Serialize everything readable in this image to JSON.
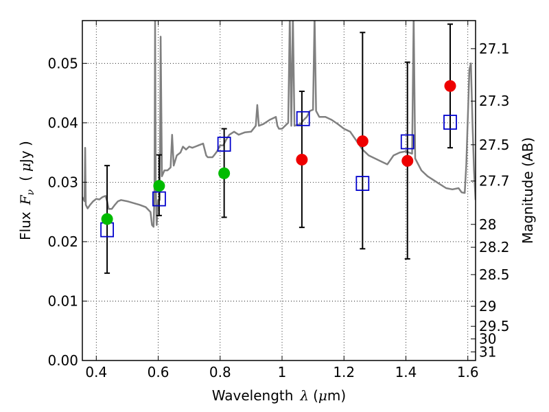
{
  "chart_data": {
    "type": "scatter",
    "xlabel": {
      "text": "Wavelength",
      "symbol": "λ",
      "unit_open": "(",
      "unit_mu": "μ",
      "unit_rest": "m)"
    },
    "ylabel": {
      "text": "Flux",
      "symbol": "F",
      "subscript": "ν",
      "unit_open": "(",
      "unit_mu": "μ",
      "unit_rest": "Jy )"
    },
    "y2label": "Magnitude (AB)",
    "xlim": [
      0.355,
      1.625
    ],
    "ylim": [
      0.0,
      0.0572
    ],
    "grid": true,
    "x_ticks": [
      {
        "value": 0.4,
        "label": "0.4"
      },
      {
        "value": 0.6,
        "label": "0.6"
      },
      {
        "value": 0.8,
        "label": "0.8"
      },
      {
        "value": 1.0,
        "label": "1"
      },
      {
        "value": 1.2,
        "label": "1.2"
      },
      {
        "value": 1.4,
        "label": "1.4"
      },
      {
        "value": 1.6,
        "label": "1.6"
      }
    ],
    "y_ticks": [
      {
        "value": 0.0,
        "label": "0.00"
      },
      {
        "value": 0.01,
        "label": "0.01"
      },
      {
        "value": 0.02,
        "label": "0.02"
      },
      {
        "value": 0.03,
        "label": "0.03"
      },
      {
        "value": 0.04,
        "label": "0.04"
      },
      {
        "value": 0.05,
        "label": "0.05"
      }
    ],
    "y2_ticks": [
      {
        "magnitude": 27.1,
        "label": "27.1"
      },
      {
        "magnitude": 27.3,
        "label": "27.3"
      },
      {
        "magnitude": 27.5,
        "label": "27.5"
      },
      {
        "magnitude": 27.7,
        "label": "27.7"
      },
      {
        "magnitude": 28.0,
        "label": "28"
      },
      {
        "magnitude": 28.2,
        "label": "28.2"
      },
      {
        "magnitude": 28.5,
        "label": "28.5"
      },
      {
        "magnitude": 29.0,
        "label": "29"
      },
      {
        "magnitude": 29.5,
        "label": "29.5"
      },
      {
        "magnitude": 30.0,
        "label": "30"
      },
      {
        "magnitude": 31.0,
        "label": "31"
      }
    ],
    "model_spectrum": {
      "color": "#808080",
      "points": [
        [
          0.355,
          0.0275
        ],
        [
          0.362,
          0.0268
        ],
        [
          0.364,
          0.0358
        ],
        [
          0.366,
          0.0262
        ],
        [
          0.372,
          0.0256
        ],
        [
          0.38,
          0.0262
        ],
        [
          0.39,
          0.0268
        ],
        [
          0.4,
          0.0272
        ],
        [
          0.41,
          0.0271
        ],
        [
          0.42,
          0.0275
        ],
        [
          0.43,
          0.0277
        ],
        [
          0.435,
          0.0268
        ],
        [
          0.44,
          0.0255
        ],
        [
          0.45,
          0.0255
        ],
        [
          0.46,
          0.0262
        ],
        [
          0.47,
          0.0268
        ],
        [
          0.48,
          0.027
        ],
        [
          0.5,
          0.0268
        ],
        [
          0.52,
          0.0265
        ],
        [
          0.54,
          0.0262
        ],
        [
          0.56,
          0.0258
        ],
        [
          0.575,
          0.025
        ],
        [
          0.58,
          0.0228
        ],
        [
          0.585,
          0.0225
        ],
        [
          0.588,
          0.028
        ],
        [
          0.59,
          0.0575
        ],
        [
          0.592,
          0.03
        ],
        [
          0.595,
          0.0228
        ],
        [
          0.6,
          0.027
        ],
        [
          0.605,
          0.027
        ],
        [
          0.608,
          0.0545
        ],
        [
          0.612,
          0.031
        ],
        [
          0.62,
          0.032
        ],
        [
          0.63,
          0.032
        ],
        [
          0.64,
          0.0325
        ],
        [
          0.645,
          0.038
        ],
        [
          0.65,
          0.0328
        ],
        [
          0.66,
          0.0345
        ],
        [
          0.672,
          0.035
        ],
        [
          0.68,
          0.036
        ],
        [
          0.69,
          0.0355
        ],
        [
          0.7,
          0.036
        ],
        [
          0.71,
          0.0358
        ],
        [
          0.72,
          0.036
        ],
        [
          0.73,
          0.0362
        ],
        [
          0.745,
          0.0365
        ],
        [
          0.755,
          0.0345
        ],
        [
          0.76,
          0.0342
        ],
        [
          0.775,
          0.0342
        ],
        [
          0.78,
          0.0345
        ],
        [
          0.79,
          0.0352
        ],
        [
          0.8,
          0.0362
        ],
        [
          0.81,
          0.0362
        ],
        [
          0.82,
          0.0372
        ],
        [
          0.83,
          0.038
        ],
        [
          0.845,
          0.0385
        ],
        [
          0.86,
          0.038
        ],
        [
          0.88,
          0.0384
        ],
        [
          0.9,
          0.0385
        ],
        [
          0.915,
          0.0395
        ],
        [
          0.92,
          0.043
        ],
        [
          0.925,
          0.0395
        ],
        [
          0.94,
          0.0398
        ],
        [
          0.96,
          0.0405
        ],
        [
          0.98,
          0.041
        ],
        [
          0.985,
          0.0395
        ],
        [
          0.99,
          0.039
        ],
        [
          1.0,
          0.039
        ],
        [
          1.02,
          0.04
        ],
        [
          1.025,
          0.058
        ],
        [
          1.03,
          0.0395
        ],
        [
          1.035,
          0.058
        ],
        [
          1.04,
          0.0395
        ],
        [
          1.06,
          0.0398
        ],
        [
          1.07,
          0.0405
        ],
        [
          1.08,
          0.041
        ],
        [
          1.09,
          0.042
        ],
        [
          1.1,
          0.0422
        ],
        [
          1.105,
          0.058
        ],
        [
          1.11,
          0.042
        ],
        [
          1.12,
          0.041
        ],
        [
          1.14,
          0.041
        ],
        [
          1.16,
          0.0405
        ],
        [
          1.18,
          0.0398
        ],
        [
          1.2,
          0.039
        ],
        [
          1.22,
          0.0385
        ],
        [
          1.24,
          0.037
        ],
        [
          1.26,
          0.0355
        ],
        [
          1.28,
          0.0345
        ],
        [
          1.3,
          0.034
        ],
        [
          1.32,
          0.0335
        ],
        [
          1.34,
          0.033
        ],
        [
          1.36,
          0.0345
        ],
        [
          1.38,
          0.035
        ],
        [
          1.4,
          0.0352
        ],
        [
          1.42,
          0.0348
        ],
        [
          1.425,
          0.058
        ],
        [
          1.43,
          0.034
        ],
        [
          1.45,
          0.032
        ],
        [
          1.47,
          0.031
        ],
        [
          1.5,
          0.03
        ],
        [
          1.53,
          0.029
        ],
        [
          1.55,
          0.0288
        ],
        [
          1.57,
          0.029
        ],
        [
          1.58,
          0.0283
        ],
        [
          1.59,
          0.0282
        ],
        [
          1.595,
          0.033
        ],
        [
          1.605,
          0.049
        ],
        [
          1.61,
          0.05
        ],
        [
          1.615,
          0.04
        ],
        [
          1.62,
          0.032
        ],
        [
          1.625,
          0.027
        ]
      ]
    },
    "observed_points": [
      {
        "x": 0.435,
        "y": 0.0238,
        "yerr_low": 0.0147,
        "yerr_high": 0.0328,
        "color": "#00bb00"
      },
      {
        "x": 0.603,
        "y": 0.0294,
        "yerr_low": 0.0244,
        "yerr_high": 0.0346,
        "color": "#00bb00"
      },
      {
        "x": 0.813,
        "y": 0.0315,
        "yerr_low": 0.0241,
        "yerr_high": 0.039,
        "color": "#00bb00"
      },
      {
        "x": 1.064,
        "y": 0.0338,
        "yerr_low": 0.0224,
        "yerr_high": 0.0453,
        "color": "#ee0000"
      },
      {
        "x": 1.26,
        "y": 0.0369,
        "yerr_low": 0.0188,
        "yerr_high": 0.0552,
        "color": "#ee0000"
      },
      {
        "x": 1.405,
        "y": 0.0336,
        "yerr_low": 0.0171,
        "yerr_high": 0.0502,
        "color": "#ee0000"
      },
      {
        "x": 1.543,
        "y": 0.0462,
        "yerr_low": 0.0358,
        "yerr_high": 0.0566,
        "color": "#ee0000"
      }
    ],
    "model_photometry": {
      "color": "#0000cc",
      "points": [
        {
          "x": 0.435,
          "y": 0.022
        },
        {
          "x": 0.603,
          "y": 0.0272
        },
        {
          "x": 0.813,
          "y": 0.0364
        },
        {
          "x": 1.068,
          "y": 0.0407
        },
        {
          "x": 1.26,
          "y": 0.0298
        },
        {
          "x": 1.405,
          "y": 0.0368
        },
        {
          "x": 1.543,
          "y": 0.0401
        }
      ]
    }
  }
}
